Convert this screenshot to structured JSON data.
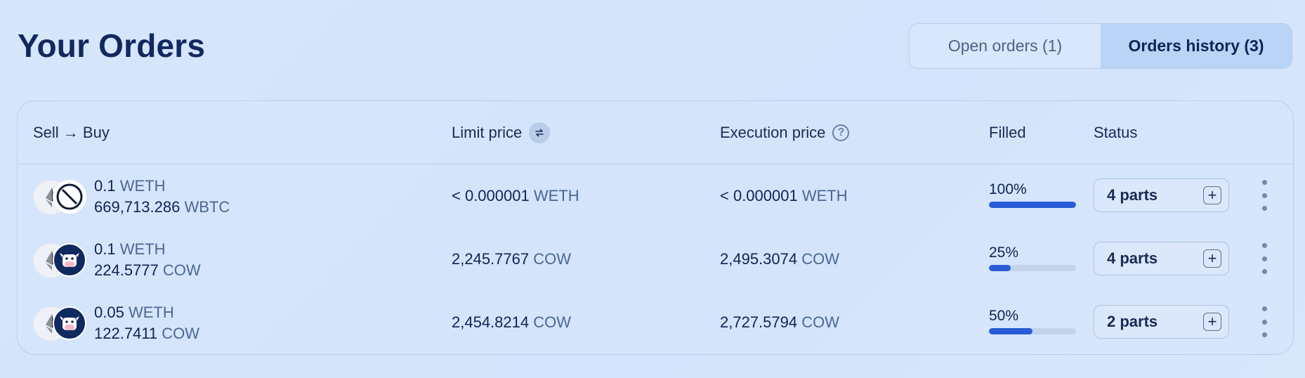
{
  "title": "Your Orders",
  "tabs": [
    {
      "label": "Open orders (1)",
      "active": false
    },
    {
      "label": "Orders history (3)",
      "active": true
    }
  ],
  "columns": {
    "pair": "Sell → Buy",
    "limit_price": "Limit price",
    "execution_price": "Execution price",
    "filled": "Filled",
    "status": "Status"
  },
  "icons": {
    "swap": "swap-arrows-icon",
    "help": "question-circle-icon",
    "sell_token": "weth-icon",
    "add": "plus-icon",
    "menu": "kebab-menu-icon"
  },
  "colors": {
    "progress_fill": "#2a5bd7",
    "active_tab": "#b9d4f5",
    "title": "#12295f"
  },
  "orders": [
    {
      "sell_amount": "0.1",
      "sell_symbol": "WETH",
      "buy_amount": "669,713.286",
      "buy_symbol": "WBTC",
      "buy_icon": "wbtc-icon",
      "limit_price": "< 0.000001",
      "limit_symbol": "WETH",
      "exec_price": "< 0.000001",
      "exec_symbol": "WETH",
      "filled_label": "100%",
      "filled_fraction": 1.0,
      "status": "4 parts"
    },
    {
      "sell_amount": "0.1",
      "sell_symbol": "WETH",
      "buy_amount": "224.5777",
      "buy_symbol": "COW",
      "buy_icon": "cow-icon",
      "limit_price": "2,245.7767",
      "limit_symbol": "COW",
      "exec_price": "2,495.3074",
      "exec_symbol": "COW",
      "filled_label": "25%",
      "filled_fraction": 0.25,
      "status": "4 parts"
    },
    {
      "sell_amount": "0.05",
      "sell_symbol": "WETH",
      "buy_amount": "122.7411",
      "buy_symbol": "COW",
      "buy_icon": "cow-icon",
      "limit_price": "2,454.8214",
      "limit_symbol": "COW",
      "exec_price": "2,727.5794",
      "exec_symbol": "COW",
      "filled_label": "50%",
      "filled_fraction": 0.5,
      "status": "2 parts"
    }
  ]
}
